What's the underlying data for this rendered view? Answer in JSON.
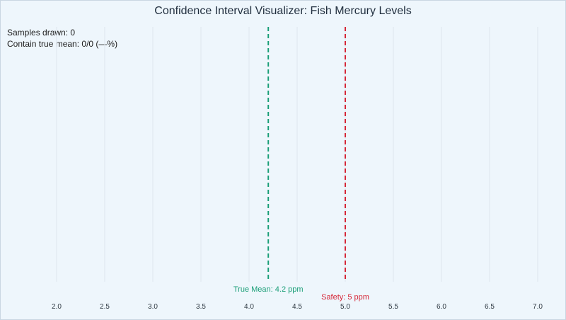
{
  "title": "Confidence Interval Visualizer: Fish Mercury Levels",
  "stats": {
    "samples_drawn_label": "Samples drawn:",
    "samples_drawn": "0",
    "contain_label": "Contain true mean:",
    "contain_value": "0/0 (—%)"
  },
  "chart_data": {
    "type": "scatter",
    "x_ticks": [
      "2.0",
      "2.5",
      "3.0",
      "3.5",
      "4.0",
      "4.5",
      "5.0",
      "5.5",
      "6.0",
      "6.5",
      "7.0"
    ],
    "xlim": [
      2.0,
      7.0
    ],
    "grid": true,
    "intervals": [],
    "reference_lines": [
      {
        "key": "true_mean",
        "value": 4.2,
        "label": "True Mean: 4.2 ppm",
        "color": "#1a9e77"
      },
      {
        "key": "safety",
        "value": 5.0,
        "label": "Safety: 5 ppm",
        "color": "#d62839"
      }
    ]
  }
}
